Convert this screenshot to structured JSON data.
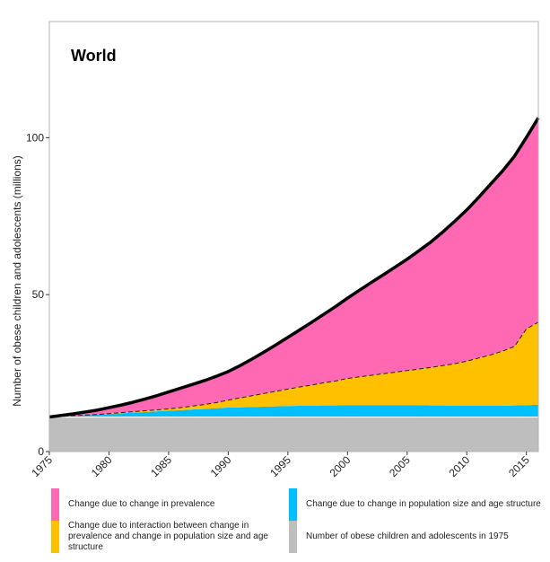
{
  "chart_data": {
    "type": "area",
    "title": "World",
    "xlabel": "",
    "ylabel": "Number of obese children and adolescents (millions)",
    "xlim": [
      1975,
      2016
    ],
    "ylim": [
      0,
      137
    ],
    "xticks": [
      "1975",
      "1980",
      "1985",
      "1990",
      "1995",
      "2000",
      "2005",
      "2010",
      "2015"
    ],
    "yticks": [
      "0",
      "50",
      "100"
    ],
    "grid": false,
    "legend_position": "bottom",
    "x": [
      1975,
      1976,
      1977,
      1978,
      1979,
      1980,
      1981,
      1982,
      1983,
      1984,
      1985,
      1986,
      1987,
      1988,
      1989,
      1990,
      1991,
      1992,
      1993,
      1994,
      1995,
      1996,
      1997,
      1998,
      1999,
      2000,
      2001,
      2002,
      2003,
      2004,
      2005,
      2006,
      2007,
      2008,
      2009,
      2010,
      2011,
      2012,
      2013,
      2014,
      2015,
      2016
    ],
    "series": [
      {
        "name": "Number of obese children and adolescents in 1975",
        "color": "#BEBEBE",
        "values": [
          11,
          11,
          11,
          11,
          11,
          11,
          11,
          11,
          11,
          11,
          11,
          11,
          11,
          11,
          11,
          11,
          11,
          11,
          11,
          11,
          11,
          11,
          11,
          11,
          11,
          11,
          11,
          11,
          11,
          11,
          11,
          11,
          11,
          11,
          11,
          11,
          11,
          11,
          11,
          11,
          11,
          11
        ]
      },
      {
        "name": "Change due to change in population size and age structure",
        "color": "#00BFFF",
        "values": [
          0,
          0.2,
          0.4,
          0.6,
          0.8,
          1.0,
          1.2,
          1.4,
          1.6,
          1.8,
          2.0,
          2.2,
          2.4,
          2.6,
          2.8,
          3.0,
          3.1,
          3.2,
          3.3,
          3.4,
          3.5,
          3.6,
          3.6,
          3.7,
          3.7,
          3.8,
          3.8,
          3.8,
          3.8,
          3.8,
          3.8,
          3.8,
          3.7,
          3.7,
          3.6,
          3.6,
          3.6,
          3.6,
          3.6,
          3.7,
          3.8,
          3.9
        ]
      },
      {
        "name": "Change due to interaction between change in prevalence and change in population size and age structure",
        "color": "#FFC000",
        "values": [
          0,
          0,
          0,
          0,
          0,
          0.1,
          0.2,
          0.3,
          0.4,
          0.5,
          0.6,
          0.8,
          1.1,
          1.4,
          1.8,
          2.4,
          3.0,
          3.6,
          4.2,
          4.8,
          5.4,
          6.0,
          6.6,
          7.2,
          7.8,
          8.5,
          9.0,
          9.5,
          10.0,
          10.5,
          11.0,
          11.5,
          12.1,
          12.7,
          13.4,
          14.2,
          15.2,
          16.2,
          17.4,
          18.8,
          24.3,
          26.3
        ]
      },
      {
        "name": "Change due to change in prevalence",
        "color": "#FF69B4",
        "values": [
          0,
          0.3,
          0.6,
          1.0,
          1.4,
          1.9,
          2.4,
          3.0,
          3.7,
          4.5,
          5.4,
          6.2,
          6.9,
          7.6,
          8.4,
          9.1,
          10.3,
          11.7,
          13.2,
          14.8,
          16.5,
          18.2,
          20.0,
          21.8,
          23.7,
          25.6,
          27.6,
          29.6,
          31.5,
          33.5,
          35.5,
          37.7,
          40.0,
          42.6,
          45.4,
          48.2,
          51.2,
          54.4,
          57.4,
          60.6,
          61.0,
          65.1
        ]
      }
    ]
  },
  "legend": {
    "items": [
      {
        "label": "Change due to change in prevalence",
        "color": "#FF69B4"
      },
      {
        "label": "Change due to change in population size and age structure",
        "color": "#00BFFF"
      },
      {
        "label": "Change due to interaction between change in prevalence and change in population size and age structure",
        "color": "#FFC000"
      },
      {
        "label": "Number of obese children and adolescents in 1975",
        "color": "#BEBEBE"
      }
    ]
  }
}
